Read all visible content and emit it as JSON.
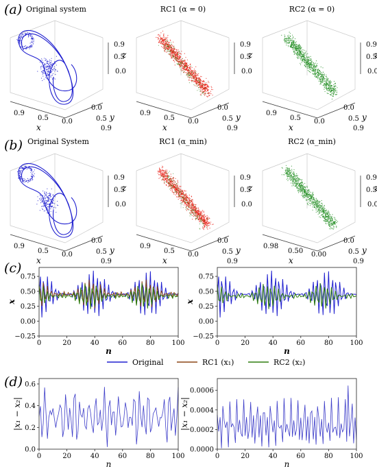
{
  "panels": {
    "a": {
      "letter": "(a)",
      "titles": [
        "Original system",
        "RC1 (α = 0)",
        "RC2 (α = 0)"
      ],
      "subplots": [
        {
          "x_ticks": [
            "0.9",
            "0.5",
            "0.0"
          ],
          "y_ticks": [
            "0.0",
            "0.5",
            "0.9"
          ],
          "z_ticks": [
            "0.9",
            "0.5",
            "0.0"
          ]
        },
        {
          "x_ticks": [
            "0.9",
            "0.5",
            "0.0"
          ],
          "y_ticks": [
            "0.0",
            "0.5",
            "0.9"
          ],
          "z_ticks": [
            "0.9",
            "0.5",
            "0.0"
          ]
        },
        {
          "x_ticks": [
            "0.9",
            "0.5",
            "0.0"
          ],
          "y_ticks": [
            "0.0",
            "0.5",
            "0.9"
          ],
          "z_ticks": [
            "0.9",
            "0.5",
            "0.0"
          ]
        }
      ]
    },
    "b": {
      "letter": "(b)",
      "titles": [
        "Original System",
        "RC1 (α_min)",
        "RC2 (α_min)"
      ],
      "subplots": [
        {
          "x_ticks": [
            "0.9",
            "0.5",
            "0.0"
          ],
          "y_ticks": [
            "0.0",
            "0.5",
            "0.9"
          ],
          "z_ticks": [
            "0.9",
            "0.5",
            "0.0"
          ]
        },
        {
          "x_ticks": [
            "0.9",
            "0.5",
            "0.0"
          ],
          "y_ticks": [
            "0.0",
            "0.5",
            "0.9"
          ],
          "z_ticks": [
            "0.9",
            "0.5",
            "0.0"
          ]
        },
        {
          "x_ticks": [
            "0.98",
            "0.50",
            "0.00"
          ],
          "y_ticks": [
            "0.0",
            "0.5",
            "0.9"
          ],
          "z_ticks": [
            "0.9",
            "0.5",
            "0.0"
          ]
        }
      ]
    },
    "c": {
      "letter": "(c)"
    },
    "d": {
      "letter": "(d)"
    }
  },
  "axis_letters": {
    "x": "x",
    "y": "y",
    "z": "z",
    "n": "n"
  },
  "legend": {
    "original": "Original",
    "rc1": "RC1 (x₁)",
    "rc2": "RC2 (x₂)"
  },
  "colors": {
    "original": "#1f1fcf",
    "rc1": "#8b4513",
    "rc2": "#2e7d0e",
    "rc1_scatter": "#e8140a",
    "rc2_scatter": "#1e8c1e",
    "diff": "#3b3bc8"
  },
  "chart_data": [
    {
      "type": "line",
      "id": "c-left",
      "xlabel": "n",
      "ylabel": "x",
      "xlim": [
        0,
        100
      ],
      "ylim": [
        -0.25,
        0.9
      ],
      "x_ticks": [
        0,
        20,
        40,
        60,
        80,
        100
      ],
      "y_ticks": [
        -0.25,
        0.0,
        0.25,
        0.5,
        0.75
      ],
      "y_tick_labels": [
        "−0.25",
        "0.00",
        "0.25",
        "0.50",
        "0.75"
      ],
      "series": [
        {
          "name": "Original",
          "key": "original"
        },
        {
          "name": "RC1 (x₁)",
          "key": "rc1"
        },
        {
          "name": "RC2 (x₂)",
          "key": "rc2"
        }
      ]
    },
    {
      "type": "line",
      "id": "c-right",
      "xlabel": "n",
      "ylabel": "x",
      "xlim": [
        0,
        100
      ],
      "ylim": [
        -0.25,
        0.9
      ],
      "x_ticks": [
        0,
        20,
        40,
        60,
        80,
        100
      ],
      "y_ticks": [
        -0.25,
        0.0,
        0.25,
        0.5,
        0.75
      ],
      "y_tick_labels": [
        "−0.25",
        "0.00",
        "0.25",
        "0.50",
        "0.75"
      ],
      "series": [
        {
          "name": "Original",
          "key": "original"
        },
        {
          "name": "RC2 (x₂)",
          "key": "rc2"
        }
      ]
    },
    {
      "type": "line",
      "id": "d-left",
      "xlabel": "n",
      "ylabel": "|x₁ − x₂|",
      "xlim": [
        0,
        100
      ],
      "ylim": [
        0,
        0.65
      ],
      "x_ticks": [
        0,
        20,
        40,
        60,
        80,
        100
      ],
      "y_ticks": [
        0.0,
        0.2,
        0.4,
        0.6
      ],
      "y_tick_labels": [
        "0.0",
        "0.2",
        "0.4",
        "0.6"
      ],
      "series": [
        {
          "key": "diff"
        }
      ]
    },
    {
      "type": "line",
      "id": "d-right",
      "xlabel": "n",
      "ylabel": "|x₁ − x₂|",
      "xlim": [
        0,
        100
      ],
      "ylim": [
        0,
        0.00072
      ],
      "x_ticks": [
        0,
        20,
        40,
        60,
        80,
        100
      ],
      "y_ticks": [
        0.0,
        0.0002,
        0.0004,
        0.0006
      ],
      "y_tick_labels": [
        "0.0000",
        "0.0002",
        "0.0004",
        "0.0006"
      ],
      "series": [
        {
          "key": "diff"
        }
      ]
    }
  ]
}
